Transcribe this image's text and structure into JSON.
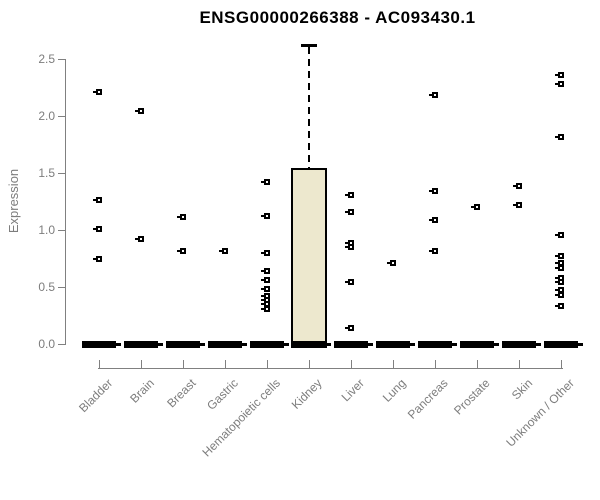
{
  "chart_data": {
    "type": "boxplot",
    "title": "ENSG00000266388 - AC093430.1",
    "ylabel": "Expression",
    "xlabel": "",
    "ylim": [
      0.0,
      2.5
    ],
    "yticks": [
      0.0,
      0.5,
      1.0,
      1.5,
      2.0,
      2.5
    ],
    "grid": false,
    "legend": false,
    "categories": [
      "Bladder",
      "Brain",
      "Breast",
      "Gastric",
      "Hematopoietic cells",
      "Kidney",
      "Liver",
      "Lung",
      "Pancreas",
      "Prostate",
      "Skin",
      "Unknown / Other"
    ],
    "series": [
      {
        "category": "Bladder",
        "median": 0,
        "points": [
          2.21,
          1.26,
          1.01,
          0.75
        ]
      },
      {
        "category": "Brain",
        "median": 0,
        "points": [
          2.04,
          0.92
        ]
      },
      {
        "category": "Breast",
        "median": 0,
        "points": [
          1.11,
          0.82
        ]
      },
      {
        "category": "Gastric",
        "median": 0,
        "points": [
          0.82
        ]
      },
      {
        "category": "Hematopoietic cells",
        "median": 0,
        "points": [
          1.42,
          1.12,
          0.8,
          0.64,
          0.56,
          0.48,
          0.42,
          0.39,
          0.35,
          0.31
        ]
      },
      {
        "category": "Kidney",
        "median": 0,
        "box": {
          "q1": 0,
          "q3": 1.54,
          "whisker_high": 2.63,
          "whisker_low": 0
        },
        "points": []
      },
      {
        "category": "Liver",
        "median": 0,
        "points": [
          1.31,
          1.16,
          0.89,
          0.85,
          0.54,
          0.14
        ]
      },
      {
        "category": "Lung",
        "median": 0,
        "points": [
          0.71
        ]
      },
      {
        "category": "Pancreas",
        "median": 0,
        "points": [
          2.18,
          1.34,
          1.09,
          0.82
        ]
      },
      {
        "category": "Prostate",
        "median": 0,
        "points": [
          1.2
        ]
      },
      {
        "category": "Skin",
        "median": 0,
        "points": [
          1.39,
          1.22
        ]
      },
      {
        "category": "Unknown / Other",
        "median": 0,
        "points": [
          2.36,
          2.28,
          1.82,
          0.96,
          0.77,
          0.71,
          0.67,
          0.58,
          0.54,
          0.47,
          0.43,
          0.33
        ]
      }
    ],
    "colors": {
      "box_fill": "#EDE8CE",
      "box_border": "#000000",
      "marker": "#000000",
      "axis": "#808080",
      "label_text": "#7d7d7d",
      "title_text": "#000000",
      "background": "#ffffff"
    }
  }
}
